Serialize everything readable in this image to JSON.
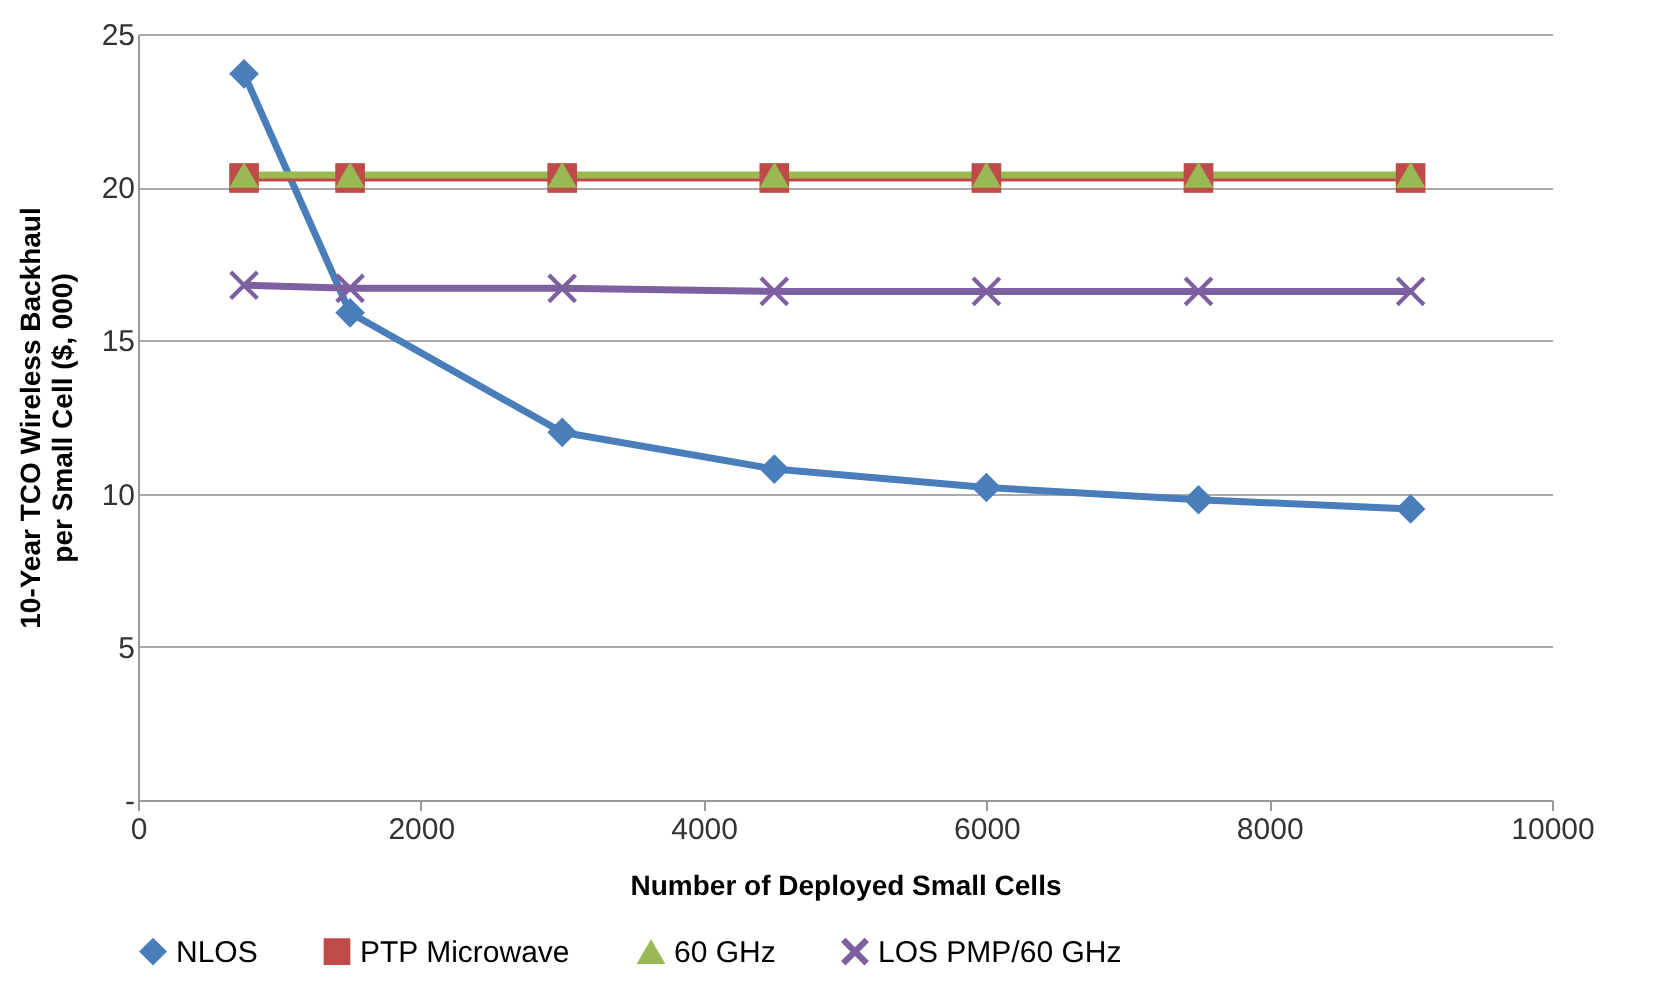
{
  "chart_data": {
    "type": "line",
    "xlabel": "Number of Deployed Small Cells",
    "ylabel": "10-Year TCO Wireless Backhaul per Small Cell ($, 000)",
    "x": [
      750,
      1500,
      3000,
      4500,
      6000,
      7500,
      9000
    ],
    "series": [
      {
        "name": "NLOS",
        "color": "#4a7ebb",
        "marker": "diamond",
        "values": [
          23.7,
          15.9,
          12.0,
          10.8,
          10.2,
          9.8,
          9.5
        ]
      },
      {
        "name": "PTP Microwave",
        "color": "#be4b48",
        "marker": "square",
        "values": [
          20.3,
          20.3,
          20.3,
          20.3,
          20.3,
          20.3,
          20.3
        ]
      },
      {
        "name": "60 GHz",
        "color": "#98b954",
        "marker": "triangle",
        "values": [
          20.4,
          20.4,
          20.4,
          20.4,
          20.4,
          20.4,
          20.4
        ]
      },
      {
        "name": "LOS PMP/60 GHz",
        "color": "#7d60a0",
        "marker": "cross",
        "values": [
          16.8,
          16.7,
          16.7,
          16.6,
          16.6,
          16.6,
          16.6
        ]
      }
    ],
    "xlim": [
      0,
      10000
    ],
    "xticks": [
      0,
      2000,
      4000,
      6000,
      8000,
      10000
    ],
    "ylim": [
      0,
      25
    ],
    "yticks": [
      {
        "value": 0,
        "label": "-"
      },
      5,
      10,
      15,
      20,
      25
    ],
    "grid": "y",
    "legend": "bottom"
  }
}
